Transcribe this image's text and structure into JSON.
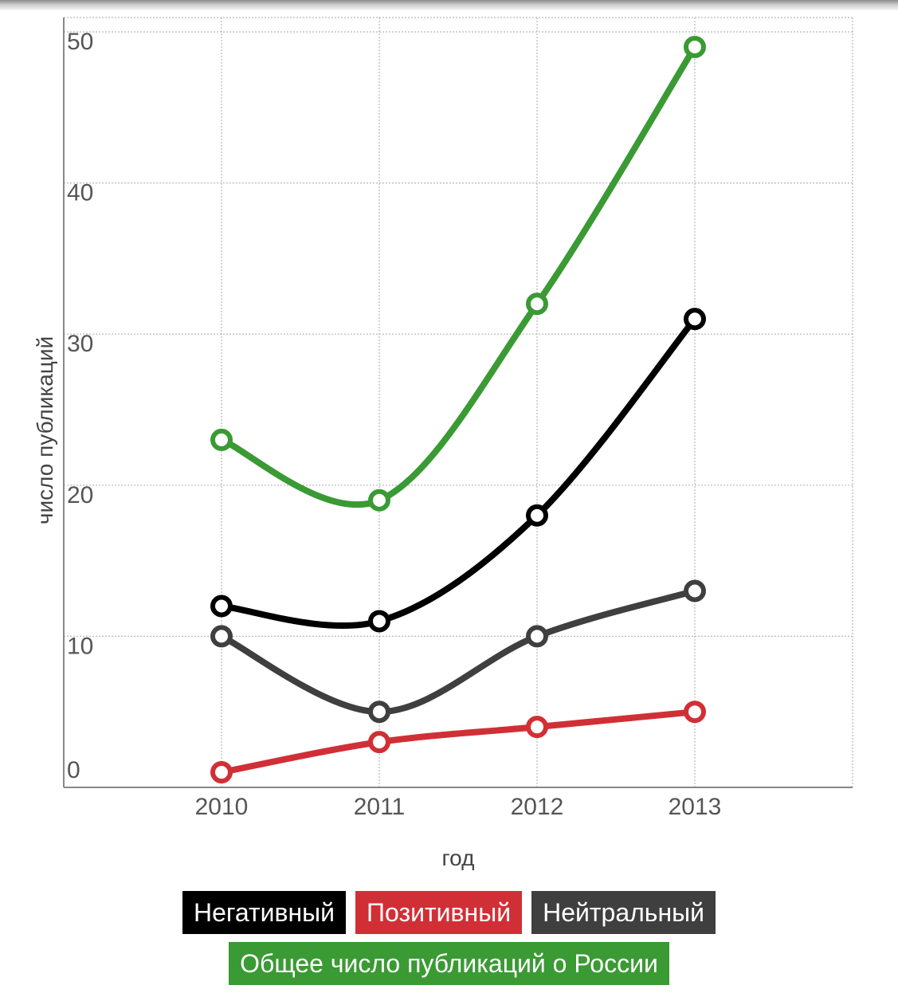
{
  "chart_data": {
    "type": "line",
    "x": [
      2010,
      2011,
      2012,
      2013
    ],
    "x_tick_labels": [
      "2010",
      "2011",
      "2012",
      "2013"
    ],
    "xlim": [
      2009,
      2014
    ],
    "ylim": [
      0,
      50
    ],
    "y_ticks": [
      0,
      10,
      20,
      30,
      40,
      50
    ],
    "y_tick_labels": [
      "0",
      "10",
      "20",
      "30",
      "40",
      "50"
    ],
    "xlabel": "год",
    "ylabel": "число публикаций",
    "grid": true,
    "legend_position": "bottom",
    "series": [
      {
        "name": "Общее число публикаций о России",
        "color": "#3a9a33",
        "values": [
          23,
          19,
          32,
          49
        ]
      },
      {
        "name": "Негативный",
        "color": "#000000",
        "values": [
          12,
          11,
          18,
          31
        ]
      },
      {
        "name": "Нейтральный",
        "color": "#3f3f3f",
        "values": [
          10,
          5,
          10,
          13
        ]
      },
      {
        "name": "Позитивный",
        "color": "#d12f36",
        "values": [
          1,
          3,
          4,
          5
        ]
      }
    ]
  },
  "legend": {
    "rows": [
      [
        {
          "label": "Негативный",
          "color": "#000000"
        },
        {
          "label": "Позитивный",
          "color": "#d12f36"
        },
        {
          "label": "Нейтральный",
          "color": "#3f3f3f"
        }
      ],
      [
        {
          "label": "Общее число публикаций о России",
          "color": "#3a9a33"
        }
      ]
    ]
  }
}
